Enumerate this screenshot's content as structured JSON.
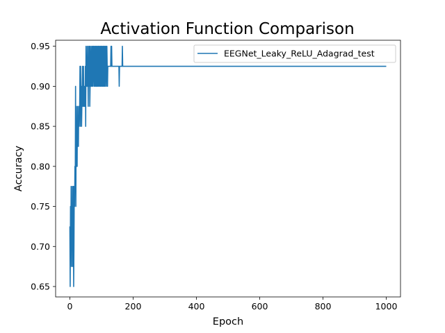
{
  "chart_data": {
    "type": "line",
    "title": "Activation Function Comparison",
    "xlabel": "Epoch",
    "ylabel": "Accuracy",
    "xlim": [
      -45,
      1045
    ],
    "ylim": [
      0.637,
      0.9575
    ],
    "xticks": [
      0,
      200,
      400,
      600,
      800,
      1000
    ],
    "yticks": [
      0.65,
      0.7,
      0.75,
      0.8,
      0.85,
      0.9,
      0.95
    ],
    "grid": false,
    "legend_position": "upper-right",
    "series": [
      {
        "name": "EEGNet_Leaky_ReLU_Adagrad_test",
        "color": "#1f77b4",
        "x": [
          0,
          1,
          2,
          3,
          4,
          5,
          6,
          7,
          8,
          9,
          10,
          11,
          12,
          13,
          14,
          15,
          16,
          17,
          18,
          19,
          20,
          21,
          22,
          23,
          24,
          25,
          26,
          27,
          28,
          29,
          30,
          31,
          32,
          33,
          34,
          35,
          36,
          37,
          38,
          39,
          40,
          41,
          42,
          43,
          44,
          45,
          46,
          47,
          48,
          49,
          50,
          51,
          52,
          53,
          54,
          55,
          56,
          57,
          58,
          59,
          60,
          61,
          62,
          63,
          64,
          65,
          66,
          67,
          68,
          69,
          70,
          71,
          72,
          73,
          74,
          75,
          76,
          77,
          78,
          79,
          80,
          81,
          82,
          83,
          84,
          85,
          86,
          87,
          88,
          89,
          90,
          91,
          92,
          93,
          94,
          95,
          96,
          97,
          98,
          99,
          100,
          101,
          102,
          103,
          104,
          105,
          106,
          107,
          108,
          109,
          110,
          111,
          112,
          113,
          114,
          115,
          116,
          117,
          118,
          119,
          120,
          121,
          122,
          123,
          124,
          125,
          126,
          127,
          128,
          129,
          130,
          131,
          132,
          133,
          134,
          135,
          136,
          137,
          138,
          139,
          140,
          150,
          155,
          156,
          157,
          160,
          165,
          166,
          167,
          170,
          1000
        ],
        "y": [
          0.725,
          0.65,
          0.75,
          0.7,
          0.775,
          0.675,
          0.75,
          0.7,
          0.775,
          0.675,
          0.725,
          0.775,
          0.65,
          0.7,
          0.775,
          0.75,
          0.8,
          0.775,
          0.9,
          0.75,
          0.875,
          0.8,
          0.85,
          0.8,
          0.875,
          0.825,
          0.85,
          0.825,
          0.875,
          0.85,
          0.875,
          0.875,
          0.925,
          0.85,
          0.925,
          0.875,
          0.9,
          0.85,
          0.875,
          0.9,
          0.925,
          0.875,
          0.9,
          0.925,
          0.875,
          0.9,
          0.875,
          0.9,
          0.875,
          0.925,
          0.85,
          0.95,
          0.9,
          0.925,
          0.9,
          0.95,
          0.9,
          0.925,
          0.875,
          0.95,
          0.9,
          0.925,
          0.95,
          0.875,
          0.9,
          0.95,
          0.925,
          0.9,
          0.925,
          0.95,
          0.9,
          0.925,
          0.95,
          0.9,
          0.925,
          0.95,
          0.925,
          0.9,
          0.95,
          0.925,
          0.9,
          0.95,
          0.925,
          0.9,
          0.95,
          0.9,
          0.925,
          0.95,
          0.9,
          0.925,
          0.95,
          0.9,
          0.925,
          0.95,
          0.9,
          0.925,
          0.95,
          0.9,
          0.925,
          0.95,
          0.9,
          0.925,
          0.95,
          0.9,
          0.925,
          0.95,
          0.9,
          0.925,
          0.95,
          0.9,
          0.925,
          0.95,
          0.9,
          0.925,
          0.95,
          0.925,
          0.9,
          0.95,
          0.925,
          0.9,
          0.925,
          0.925,
          0.925,
          0.925,
          0.925,
          0.925,
          0.925,
          0.925,
          0.925,
          0.925,
          0.95,
          0.925,
          0.95,
          0.925,
          0.925,
          0.925,
          0.925,
          0.925,
          0.925,
          0.925,
          0.925,
          0.925,
          0.925,
          0.9,
          0.925,
          0.925,
          0.925,
          0.95,
          0.925,
          0.925,
          0.925
        ]
      }
    ]
  }
}
